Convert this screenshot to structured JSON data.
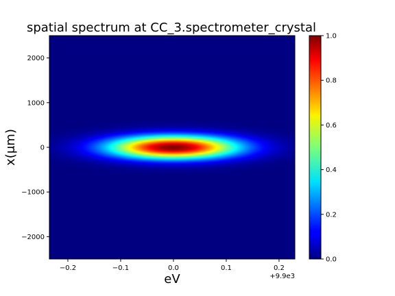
{
  "chart_data": {
    "type": "heatmap",
    "title": "spatial spectrum at CC_3.spectrometer_crystal",
    "xlabel": "eV",
    "ylabel": "x(μm)",
    "x_offset_label": "+9.9e3",
    "xlim": [
      -0.235,
      0.23
    ],
    "ylim": [
      -2500,
      2500
    ],
    "x_ticks": [
      -0.2,
      -0.1,
      0.0,
      0.1,
      0.2
    ],
    "x_tick_labels": [
      "−0.2",
      "−0.1",
      "0.0",
      "0.1",
      "0.2"
    ],
    "y_ticks": [
      2000,
      1000,
      0,
      -1000,
      -2000
    ],
    "y_tick_labels": [
      "2000",
      "1000",
      "0",
      "−1000",
      "−2000"
    ],
    "peak": {
      "x": 0.0,
      "y": 0,
      "value": 1.0
    },
    "distribution": "2D Gaussian",
    "sigma_x_eV": 0.085,
    "sigma_y_um": 180,
    "colormap": "jet",
    "colorbar": {
      "ticks": [
        0.0,
        0.2,
        0.4,
        0.6,
        0.8,
        1.0
      ],
      "tick_labels": [
        "0.0",
        "0.2",
        "0.4",
        "0.6",
        "0.8",
        "1.0"
      ],
      "range": [
        0.0,
        1.0
      ]
    },
    "grid": false
  }
}
